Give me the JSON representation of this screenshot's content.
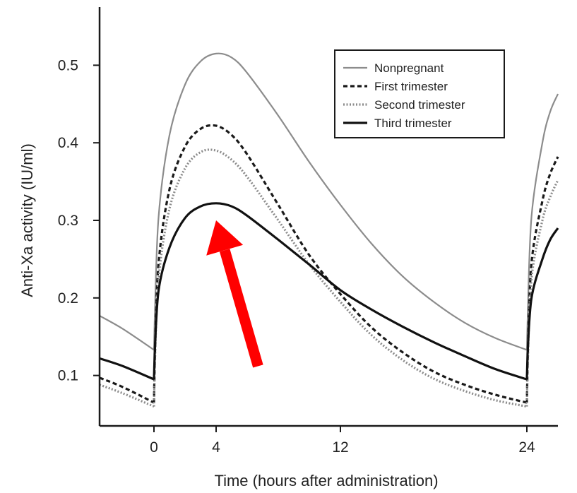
{
  "chart_data": {
    "type": "line",
    "xlabel": "Time (hours after administration)",
    "ylabel": "Anti-Xa activity (IU/ml)",
    "xlim": [
      -3.5,
      26
    ],
    "ylim": [
      0.035,
      0.575
    ],
    "xticks": [
      0,
      4,
      12,
      24
    ],
    "yticks": [
      0.1,
      0.2,
      0.3,
      0.4,
      0.5
    ],
    "ytick_labels": [
      "0.1",
      "0.2",
      "0.3",
      "0.4",
      "0.5"
    ],
    "grid": false,
    "legend_position": "top-right",
    "colors": {
      "axis": "#1a1a1a",
      "nonpregnant": "#8c8c8c",
      "first": "#1a1a1a",
      "second": "#8c8c8c",
      "third": "#111111",
      "arrow": "#ff0000"
    },
    "series": [
      {
        "name": "Nonpregnant",
        "style": "solid-gray",
        "x": [
          -3.5,
          -2,
          0,
          0.05,
          0.3,
          1,
          2,
          3,
          4,
          5,
          6,
          8,
          10,
          12,
          14,
          16,
          18,
          20,
          22,
          24,
          24.05,
          24.3,
          25,
          25.5,
          26
        ],
        "y": [
          0.177,
          0.16,
          0.133,
          0.175,
          0.305,
          0.41,
          0.475,
          0.505,
          0.515,
          0.51,
          0.49,
          0.435,
          0.375,
          0.32,
          0.27,
          0.228,
          0.195,
          0.168,
          0.148,
          0.133,
          0.175,
          0.305,
          0.4,
          0.44,
          0.463
        ]
      },
      {
        "name": "First trimester",
        "style": "dashed-black",
        "x": [
          -3.5,
          -2,
          0,
          0.05,
          0.3,
          1,
          2,
          3,
          4,
          5,
          6,
          8,
          10,
          12,
          14,
          16,
          18,
          20,
          22,
          24,
          24.05,
          24.3,
          25,
          25.5,
          26
        ],
        "y": [
          0.097,
          0.085,
          0.065,
          0.12,
          0.245,
          0.34,
          0.395,
          0.418,
          0.422,
          0.41,
          0.385,
          0.32,
          0.255,
          0.205,
          0.162,
          0.13,
          0.105,
          0.088,
          0.075,
          0.065,
          0.12,
          0.245,
          0.325,
          0.36,
          0.382
        ]
      },
      {
        "name": "Second trimester",
        "style": "dotted-gray",
        "x": [
          -3.5,
          -2,
          0,
          0.05,
          0.3,
          1,
          2,
          3,
          4,
          5,
          6,
          8,
          10,
          12,
          14,
          16,
          18,
          20,
          22,
          24,
          24.05,
          24.3,
          25,
          25.5,
          26
        ],
        "y": [
          0.088,
          0.077,
          0.06,
          0.112,
          0.225,
          0.315,
          0.367,
          0.388,
          0.39,
          0.378,
          0.356,
          0.3,
          0.243,
          0.195,
          0.152,
          0.12,
          0.096,
          0.08,
          0.068,
          0.06,
          0.112,
          0.225,
          0.3,
          0.33,
          0.352
        ]
      },
      {
        "name": "Third trimester",
        "style": "solid-black-thick",
        "x": [
          -3.5,
          -2,
          0,
          0.05,
          0.3,
          1,
          2,
          3,
          4,
          5,
          6,
          8,
          10,
          12,
          14,
          16,
          18,
          20,
          22,
          24,
          24.05,
          24.3,
          25,
          25.5,
          26
        ],
        "y": [
          0.122,
          0.112,
          0.095,
          0.13,
          0.21,
          0.265,
          0.303,
          0.318,
          0.322,
          0.318,
          0.306,
          0.275,
          0.243,
          0.21,
          0.185,
          0.163,
          0.143,
          0.125,
          0.108,
          0.095,
          0.13,
          0.2,
          0.25,
          0.275,
          0.29
        ]
      }
    ],
    "annotations": [
      {
        "type": "arrow",
        "color": "#ff0000",
        "from": {
          "x": 6.7,
          "y": 0.112
        },
        "to": {
          "x": 4,
          "y": 0.3
        }
      }
    ]
  }
}
